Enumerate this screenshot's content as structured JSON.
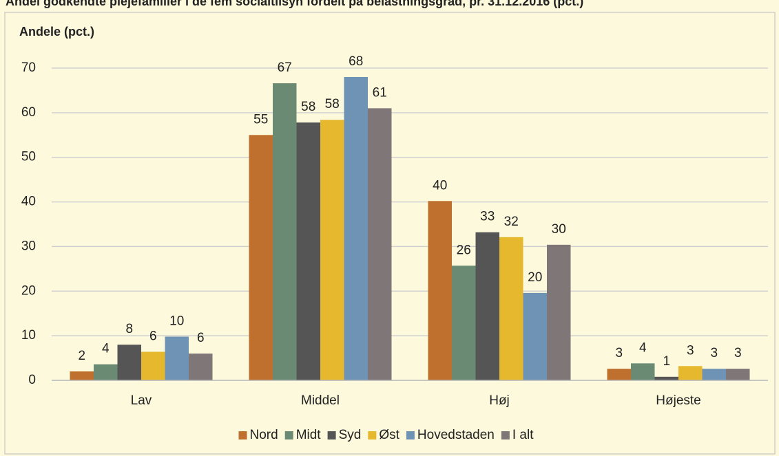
{
  "chart_data": {
    "type": "bar",
    "title": "Andel godkendte plejefamilier i de fem socialtilsyn fordelt på belastningsgrad, pr. 31.12.2016 (pct.)",
    "y_label": "Andele (pct.)",
    "categories": [
      "Lav",
      "Middel",
      "Høj",
      "Højeste"
    ],
    "series": [
      {
        "name": "Nord",
        "color": "#c0702e",
        "values": [
          2.0,
          55,
          40.2,
          2.6
        ],
        "value_labels": [
          "2",
          "55",
          "40",
          "3"
        ]
      },
      {
        "name": "Midt",
        "color": "#6b8a74",
        "values": [
          3.6,
          66.6,
          25.7,
          3.8
        ],
        "value_labels": [
          "4",
          "67",
          "26",
          "4"
        ]
      },
      {
        "name": "Syd",
        "color": "#555555",
        "values": [
          8.0,
          57.8,
          33.2,
          0.8
        ],
        "value_labels": [
          "8",
          "58",
          "33",
          "1"
        ]
      },
      {
        "name": "Øst",
        "color": "#e5b82e",
        "values": [
          6.4,
          58.4,
          32.1,
          3.2
        ],
        "value_labels": [
          "6",
          "58",
          "32",
          "3"
        ]
      },
      {
        "name": "Hovedstaden",
        "color": "#6f93b5",
        "values": [
          9.8,
          68,
          19.6,
          2.6
        ],
        "value_labels": [
          "10",
          "68",
          "20",
          "3"
        ]
      },
      {
        "name": "I alt",
        "color": "#7f7677",
        "values": [
          6.0,
          61,
          30.4,
          2.6
        ],
        "value_labels": [
          "6",
          "61",
          "30",
          "3"
        ]
      }
    ],
    "ylim": [
      0,
      70
    ],
    "yticks": [
      0,
      10,
      20,
      30,
      40,
      50,
      60,
      70
    ],
    "grid": true,
    "legend": "bottom"
  }
}
